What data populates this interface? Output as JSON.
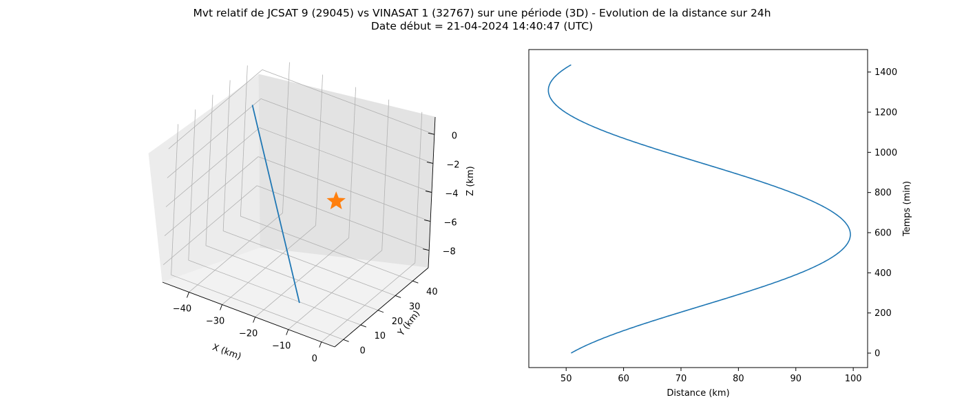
{
  "figure": {
    "title_line1": "Mvt relatif de JCSAT 9 (29045) vs VINASAT 1 (32767) sur une période (3D) - Evolution de la distance sur 24h",
    "title_line2": "Date début = 21-04-2024 14:40:47 (UTC)"
  },
  "colors": {
    "series": "#1f77b4",
    "marker": "#ff7f0e"
  },
  "chart_data": [
    {
      "type": "line3d",
      "xlabel": "X (km)",
      "ylabel": "Y (km)",
      "zlabel": "Z (km)",
      "xlim": [
        -48,
        4
      ],
      "ylim": [
        -5,
        49
      ],
      "zlim": [
        -9.2,
        1.2
      ],
      "x_ticks": [
        -40,
        -30,
        -20,
        -10,
        0
      ],
      "y_ticks": [
        0,
        10,
        20,
        30,
        40
      ],
      "z_ticks": [
        -8,
        -6,
        -4,
        -2,
        0
      ],
      "x_tick_labels": [
        "−40",
        "−30",
        "−20",
        "−10",
        "0"
      ],
      "y_tick_labels": [
        "0",
        "10",
        "20",
        "30",
        "40"
      ],
      "z_tick_labels": [
        "−8",
        "−6",
        "−4",
        "−2",
        "0"
      ],
      "grid": true,
      "series": [
        {
          "x": [
            -45.5,
            -11.5
          ],
          "y": [
            39,
            4
          ],
          "z": [
            -1.2,
            -8.4
          ]
        }
      ],
      "marker": {
        "symbol": "star",
        "x": 0,
        "y": 0,
        "z": 0
      }
    },
    {
      "type": "line",
      "xlabel": "Distance (km)",
      "ylabel": "Temps (min)",
      "y_axis_side": "right",
      "xlim": [
        43.5,
        102.5
      ],
      "ylim": [
        -72,
        1512
      ],
      "x_ticks": [
        50,
        60,
        70,
        80,
        90,
        100
      ],
      "y_ticks": [
        0,
        200,
        400,
        600,
        800,
        1000,
        1200,
        1400
      ],
      "grid": false,
      "mean_distance": 73.2,
      "amplitude": 26.3,
      "t_max": 591,
      "period": 1436,
      "t_range": [
        0,
        1436
      ]
    }
  ]
}
